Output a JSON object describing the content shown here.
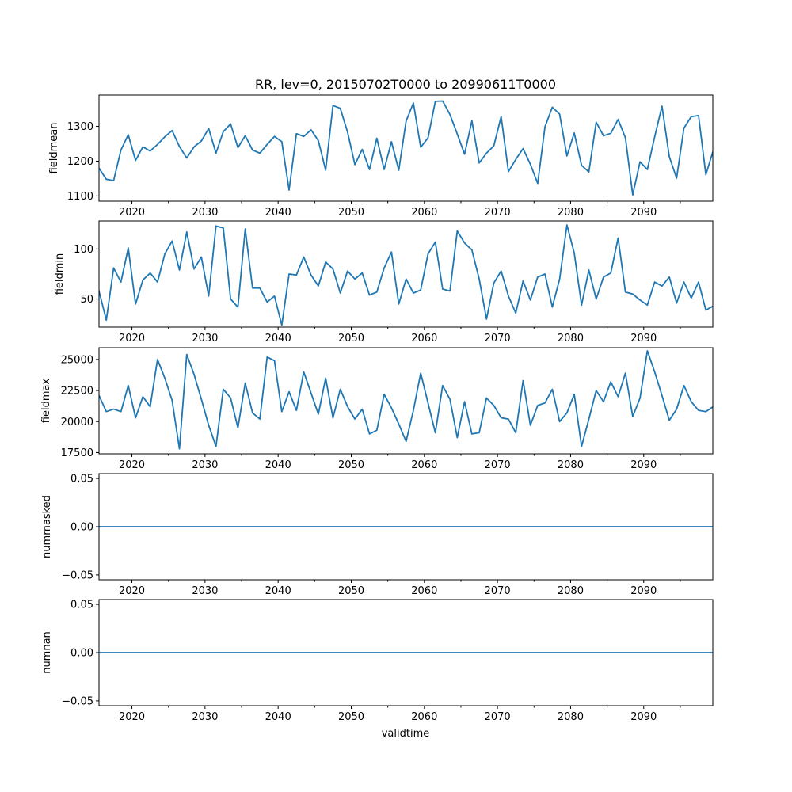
{
  "chart_data": {
    "type": "line",
    "title": "RR, lev=0, 20150702T0000 to 20990611T0000",
    "xlabel": "validtime",
    "xlim": [
      2015.5,
      2099.45
    ],
    "x_major_ticks": [
      2020,
      2030,
      2040,
      2050,
      2060,
      2070,
      2080,
      2090
    ],
    "x_minor_ticks": [
      2025,
      2035,
      2045,
      2055,
      2065,
      2075,
      2085,
      2095
    ],
    "x_tick_labels": [
      "2020",
      "2030",
      "2040",
      "2050",
      "2060",
      "2070",
      "2080",
      "2090"
    ],
    "line_color": "#1f77b4",
    "panels": [
      {
        "ylabel": "fieldmean",
        "ylim": [
          1085,
          1390
        ],
        "yticks": [
          1100,
          1200,
          1300
        ],
        "ytick_labels": [
          "1100",
          "1200",
          "1300"
        ],
        "x_start": 2015.5,
        "x_step": 1,
        "values": [
          1180,
          1148,
          1144,
          1232,
          1276,
          1202,
          1241,
          1229,
          1248,
          1270,
          1288,
          1242,
          1209,
          1241,
          1258,
          1294,
          1223,
          1285,
          1307,
          1239,
          1273,
          1232,
          1223,
          1248,
          1271,
          1256,
          1117,
          1279,
          1271,
          1290,
          1259,
          1174,
          1360,
          1352,
          1283,
          1190,
          1234,
          1176,
          1266,
          1176,
          1256,
          1174,
          1315,
          1367,
          1240,
          1267,
          1372,
          1373,
          1334,
          1278,
          1220,
          1316,
          1195,
          1223,
          1244,
          1328,
          1170,
          1205,
          1236,
          1191,
          1136,
          1299,
          1355,
          1335,
          1215,
          1281,
          1188,
          1169,
          1312,
          1273,
          1280,
          1320,
          1267,
          1103,
          1198,
          1176,
          1270,
          1358,
          1213,
          1151,
          1295,
          1328,
          1331,
          1161,
          1230
        ]
      },
      {
        "ylabel": "fieldmin",
        "ylim": [
          22,
          128
        ],
        "yticks": [
          50,
          100
        ],
        "ytick_labels": [
          "50",
          "100"
        ],
        "x_start": 2015.5,
        "x_step": 1,
        "values": [
          58,
          29,
          81,
          67,
          101,
          45,
          69,
          76,
          67,
          95,
          108,
          79,
          117,
          80,
          92,
          53,
          123,
          121,
          50,
          42,
          120,
          61,
          61,
          47,
          53,
          24,
          75,
          74,
          92,
          74,
          63,
          87,
          80,
          56,
          78,
          70,
          76,
          54,
          57,
          81,
          97,
          45,
          70,
          56,
          59,
          95,
          107,
          60,
          58,
          118,
          106,
          99,
          70,
          30,
          66,
          78,
          53,
          36,
          68,
          49,
          72,
          75,
          42,
          70,
          124,
          96,
          44,
          79,
          50,
          72,
          76,
          111,
          57,
          55,
          49,
          44,
          67,
          63,
          72,
          46,
          67,
          51,
          67,
          39,
          43
        ]
      },
      {
        "ylabel": "fieldmax",
        "ylim": [
          17400,
          25950
        ],
        "yticks": [
          17500,
          20000,
          22500,
          25000
        ],
        "ytick_labels": [
          "17500",
          "20000",
          "22500",
          "25000"
        ],
        "x_start": 2015.5,
        "x_step": 1,
        "values": [
          22100,
          20800,
          21000,
          20800,
          22900,
          20300,
          22000,
          21200,
          25000,
          23500,
          21700,
          17800,
          25400,
          23800,
          21800,
          19700,
          18000,
          22600,
          21900,
          19500,
          23100,
          20700,
          20200,
          25200,
          24900,
          20800,
          22400,
          20900,
          24000,
          22300,
          20600,
          23500,
          20300,
          22600,
          21200,
          20200,
          21000,
          19000,
          19300,
          22200,
          21100,
          19800,
          18400,
          20900,
          23900,
          21500,
          19100,
          22900,
          21800,
          18700,
          21600,
          19000,
          19100,
          21900,
          21300,
          20300,
          20200,
          19100,
          23300,
          19700,
          21300,
          21500,
          22600,
          20000,
          20700,
          22200,
          18000,
          20200,
          22500,
          21600,
          23200,
          22000,
          23900,
          20400,
          21900,
          25700,
          24000,
          22100,
          20100,
          21000,
          22900,
          21600,
          20900,
          20800,
          21200
        ]
      },
      {
        "ylabel": "nummasked",
        "ylim": [
          -0.055,
          0.055
        ],
        "yticks": [
          -0.05,
          0.0,
          0.05
        ],
        "ytick_labels": [
          "−0.05",
          "0.00",
          "0.05"
        ],
        "x_start": 2015.5,
        "x_step": 1,
        "values": [
          0,
          0
        ]
      },
      {
        "ylabel": "numnan",
        "ylim": [
          -0.055,
          0.055
        ],
        "yticks": [
          -0.05,
          0.0,
          0.05
        ],
        "ytick_labels": [
          "−0.05",
          "0.00",
          "0.05"
        ],
        "x_start": 2015.5,
        "x_step": 1,
        "values": [
          0,
          0
        ]
      }
    ]
  }
}
